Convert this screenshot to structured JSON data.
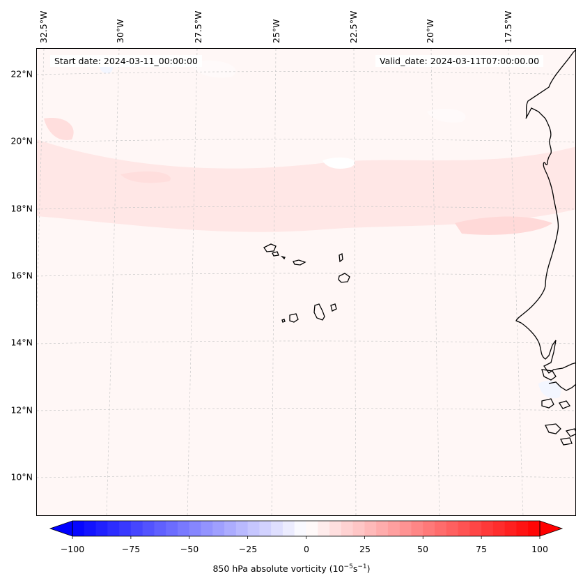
{
  "map": {
    "title_left": "Start date: 2024-03-11_00:00:00",
    "title_right": "Valid_date: 2024-03-11T07:00:00.00",
    "background_color": "#fff7f6",
    "coastline_color": "#000000",
    "gridline_color": "#c8c8c8",
    "lat_labels": [
      "22°N",
      "20°N",
      "18°N",
      "16°N",
      "14°N",
      "12°N",
      "10°N"
    ],
    "lon_labels": [
      "32.5°W",
      "30°W",
      "27.5°W",
      "25°W",
      "22.5°W",
      "20°W",
      "17.5°W"
    ],
    "field": "850 hPa absolute vorticity",
    "region": "Cabo Verde and West African coast"
  },
  "colorbar": {
    "ticks": [
      "−100",
      "−75",
      "−50",
      "−25",
      "0",
      "25",
      "50",
      "75",
      "100"
    ],
    "label_text": "850 hPa absolute vorticity (10",
    "label_exp1": "−5",
    "label_mid": "s",
    "label_exp2": "−1",
    "label_end": ")",
    "min": -100,
    "max": 100,
    "low_color": "#0000ff",
    "mid_color": "#ffffff",
    "high_color": "#ff0000"
  }
}
